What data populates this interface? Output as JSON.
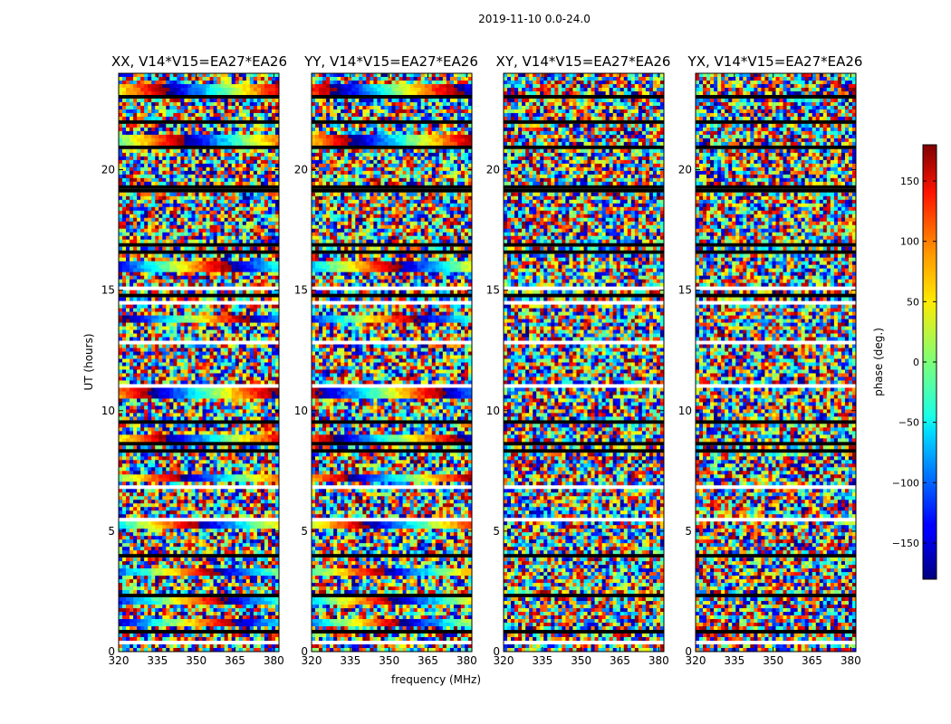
{
  "chart_data": {
    "type": "heatmap",
    "suptitle": "2019-11-10 0.0-24.0",
    "xlabel": "frequency (MHz)",
    "ylabel": "UT (hours)",
    "colorbar_label": "phase (deg.)",
    "colorbar_ticks": [
      "150",
      "100",
      "50",
      "0",
      "−50",
      "−100",
      "−150"
    ],
    "colorbar_range": [
      -180,
      180
    ],
    "colormap": "jet",
    "xticks": [
      "320",
      "335",
      "350",
      "365",
      "380"
    ],
    "yticks": [
      "0",
      "5",
      "10",
      "15",
      "20"
    ],
    "xlim": [
      320,
      382
    ],
    "ylim": [
      0,
      24
    ],
    "panels": [
      {
        "title": "XX, V14*V15=EA27*EA26",
        "pol": "XX"
      },
      {
        "title": "YY, V14*V15=EA27*EA26",
        "pol": "YY"
      },
      {
        "title": "XY, V14*V15=EA27*EA26",
        "pol": "XY"
      },
      {
        "title": "YX, V14*V15=EA27*EA26",
        "pol": "YX"
      }
    ]
  }
}
